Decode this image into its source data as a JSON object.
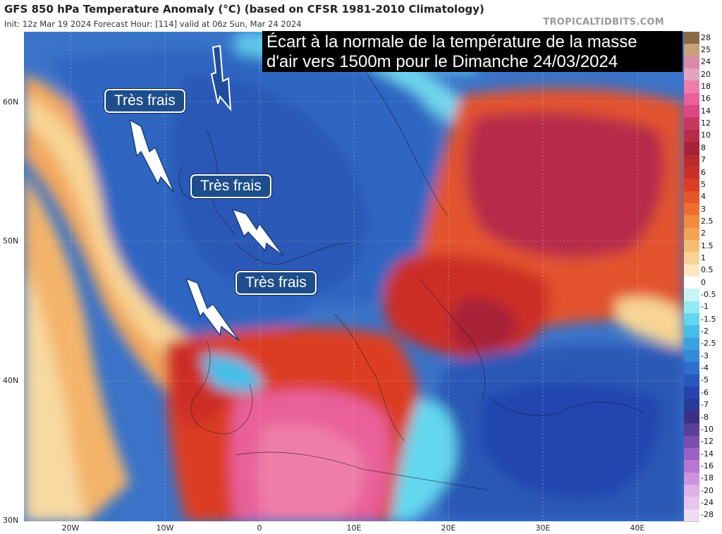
{
  "header": {
    "title": "GFS 850 hPa Temperature Anomaly (°C) (based on CFSR 1981-2010 Climatology)",
    "subtitle": "Init: 12z Mar 19 2024   Forecast Hour: [114]   valid at 06z Sun, Mar 24 2024",
    "brand": "TROPICALTIDBITS.COM"
  },
  "banner": {
    "line1": "Écart à la normale de la température de la masse",
    "line2": "d'air vers 1500m pour le Dimanche 24/03/2024"
  },
  "labels": [
    "Très frais",
    "Très frais",
    "Très frais"
  ],
  "axes": {
    "lat": [
      "60N",
      "50N",
      "40N",
      "30N"
    ],
    "lon": [
      "20W",
      "10W",
      "0",
      "10E",
      "20E",
      "30E",
      "40E"
    ]
  },
  "colorbar": {
    "values": [
      "28",
      "25",
      "24",
      "20",
      "18",
      "16",
      "14",
      "12",
      "10",
      "8",
      "7",
      "6",
      "5",
      "4",
      "3",
      "2.5",
      "2",
      "1.5",
      "1",
      "0.5",
      "0",
      "-0.5",
      "-1",
      "-1.5",
      "-2",
      "-2.5",
      "-3",
      "-4",
      "-5",
      "-6",
      "-7",
      "-8",
      "-10",
      "-12",
      "-14",
      "-16",
      "-18",
      "-20",
      "-24",
      "-28"
    ],
    "colors": [
      "#8a6a4a",
      "#c9a17a",
      "#d98aa8",
      "#e6a3c0",
      "#ee7ea8",
      "#e9609a",
      "#dd4681",
      "#c9365f",
      "#b72c49",
      "#a82338",
      "#b92b2d",
      "#cc2f27",
      "#dc3d23",
      "#e85627",
      "#ef6e2e",
      "#f08a3e",
      "#f3a354",
      "#f6bd70",
      "#f8d494",
      "#fbe8c0",
      "#ffffff",
      "#c8f5f7",
      "#94eaf2",
      "#63d7ee",
      "#45bde8",
      "#3aa2e0",
      "#3488d6",
      "#2f6ecc",
      "#2957bf",
      "#2445b0",
      "#2a3a98",
      "#3b2f86",
      "#5a3e98",
      "#7b4fb1",
      "#9a60c6",
      "#b777d3",
      "#cc93dc",
      "#ddb1e6",
      "#e6c6ec",
      "#f0dcf2"
    ]
  }
}
